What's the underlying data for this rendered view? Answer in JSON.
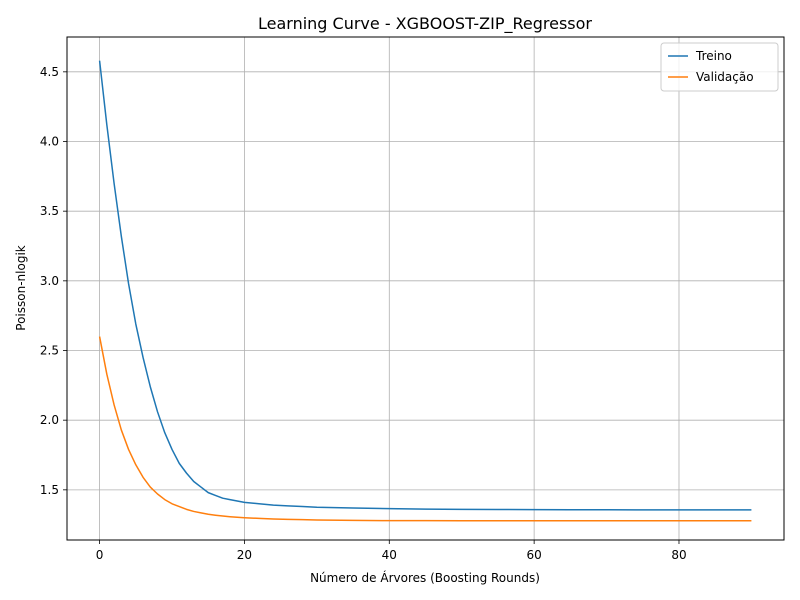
{
  "chart_data": {
    "type": "line",
    "title": "Learning Curve - XGBOOST-ZIP_Regressor",
    "xlabel": "Número de Árvores (Boosting Rounds)",
    "ylabel": "Poisson-nlogik",
    "xlim": [
      -4.5,
      94.5
    ],
    "ylim": [
      1.14,
      4.75
    ],
    "xticks": [
      0,
      20,
      40,
      60,
      80
    ],
    "yticks": [
      1.5,
      2.0,
      2.5,
      3.0,
      3.5,
      4.0,
      4.5
    ],
    "ytick_labels": [
      "1.5",
      "2.0",
      "2.5",
      "3.0",
      "3.5",
      "4.0",
      "4.5"
    ],
    "grid": true,
    "legend_position": "top-right",
    "series": [
      {
        "name": "Treino",
        "color": "#1f77b4",
        "x": [
          0,
          1,
          2,
          3,
          4,
          5,
          6,
          7,
          8,
          9,
          10,
          11,
          12,
          13,
          14,
          15,
          16,
          17,
          18,
          19,
          20,
          22,
          24,
          26,
          28,
          30,
          35,
          40,
          45,
          50,
          55,
          60,
          65,
          70,
          75,
          80,
          85,
          90
        ],
        "values": [
          4.58,
          4.12,
          3.7,
          3.32,
          2.98,
          2.69,
          2.45,
          2.24,
          2.06,
          1.91,
          1.79,
          1.69,
          1.62,
          1.56,
          1.52,
          1.48,
          1.46,
          1.44,
          1.43,
          1.42,
          1.41,
          1.4,
          1.39,
          1.385,
          1.38,
          1.375,
          1.37,
          1.365,
          1.362,
          1.36,
          1.359,
          1.358,
          1.357,
          1.357,
          1.356,
          1.356,
          1.356,
          1.356
        ]
      },
      {
        "name": "Validação",
        "color": "#ff7f0e",
        "x": [
          0,
          1,
          2,
          3,
          4,
          5,
          6,
          7,
          8,
          9,
          10,
          11,
          12,
          13,
          14,
          15,
          16,
          17,
          18,
          19,
          20,
          22,
          24,
          26,
          28,
          30,
          35,
          40,
          45,
          50,
          55,
          60,
          65,
          70,
          75,
          80,
          85,
          90
        ],
        "values": [
          2.6,
          2.33,
          2.11,
          1.93,
          1.79,
          1.68,
          1.59,
          1.52,
          1.47,
          1.43,
          1.4,
          1.38,
          1.36,
          1.345,
          1.335,
          1.325,
          1.318,
          1.312,
          1.307,
          1.303,
          1.3,
          1.295,
          1.291,
          1.288,
          1.286,
          1.284,
          1.281,
          1.279,
          1.279,
          1.278,
          1.278,
          1.278,
          1.278,
          1.278,
          1.278,
          1.278,
          1.278,
          1.278
        ]
      }
    ]
  }
}
